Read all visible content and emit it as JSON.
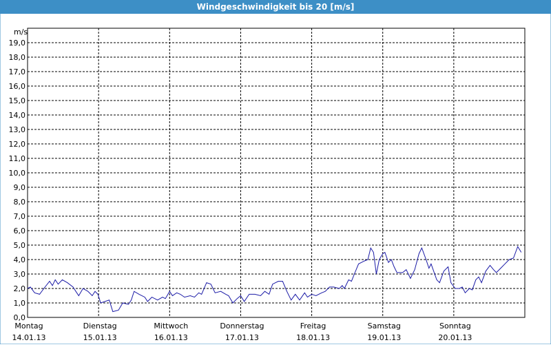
{
  "chart_data": {
    "type": "line",
    "title": "Windgeschwindigkeit bis 20 [m/s]",
    "y_unit": "m/s",
    "color": "#1a1aa6",
    "grid": true,
    "xlim": [
      0,
      7
    ],
    "ylim": [
      0,
      20
    ],
    "xticks": [
      {
        "value": 0,
        "label": "Montag",
        "sublabel": "14.01.13"
      },
      {
        "value": 1,
        "label": "Dienstag",
        "sublabel": "15.01.13"
      },
      {
        "value": 2,
        "label": "Mittwoch",
        "sublabel": "16.01.13"
      },
      {
        "value": 3,
        "label": "Donnerstag",
        "sublabel": "17.01.13"
      },
      {
        "value": 4,
        "label": "Freitag",
        "sublabel": "18.01.13"
      },
      {
        "value": 5,
        "label": "Samstag",
        "sublabel": "19.01.13"
      },
      {
        "value": 6,
        "label": "Sonntag",
        "sublabel": "20.01.13"
      }
    ],
    "yticks": [
      {
        "value": 0,
        "label": "0,0"
      },
      {
        "value": 1,
        "label": "1,0"
      },
      {
        "value": 2,
        "label": "2,0"
      },
      {
        "value": 3,
        "label": "3,0"
      },
      {
        "value": 4,
        "label": "4,0"
      },
      {
        "value": 5,
        "label": "5,0"
      },
      {
        "value": 6,
        "label": "6,0"
      },
      {
        "value": 7,
        "label": "7,0"
      },
      {
        "value": 8,
        "label": "8,0"
      },
      {
        "value": 9,
        "label": "9,0"
      },
      {
        "value": 10,
        "label": "10,0"
      },
      {
        "value": 11,
        "label": "11,0"
      },
      {
        "value": 12,
        "label": "12,0"
      },
      {
        "value": 13,
        "label": "13,0"
      },
      {
        "value": 14,
        "label": "14,0"
      },
      {
        "value": 15,
        "label": "15,0"
      },
      {
        "value": 16,
        "label": "16,0"
      },
      {
        "value": 17,
        "label": "17,0"
      },
      {
        "value": 18,
        "label": "18,0"
      },
      {
        "value": 19,
        "label": "19,0"
      }
    ],
    "x": [
      0,
      0.04,
      0.1,
      0.17,
      0.23,
      0.31,
      0.35,
      0.39,
      0.43,
      0.49,
      0.56,
      0.64,
      0.68,
      0.72,
      0.78,
      0.85,
      0.91,
      0.95,
      0.99,
      1.03,
      1.09,
      1.15,
      1.2,
      1.28,
      1.34,
      1.42,
      1.46,
      1.5,
      1.57,
      1.65,
      1.69,
      1.75,
      1.83,
      1.9,
      1.94,
      2.0,
      2.04,
      2.1,
      2.15,
      2.21,
      2.29,
      2.35,
      2.41,
      2.45,
      2.52,
      2.58,
      2.64,
      2.72,
      2.79,
      2.83,
      2.89,
      2.95,
      3.0,
      3.05,
      3.12,
      3.2,
      3.28,
      3.34,
      3.4,
      3.45,
      3.53,
      3.59,
      3.65,
      3.71,
      3.77,
      3.83,
      3.9,
      3.94,
      4.0,
      4.06,
      4.14,
      4.19,
      4.25,
      4.31,
      4.39,
      4.43,
      4.46,
      4.52,
      4.56,
      4.6,
      4.66,
      4.74,
      4.79,
      4.83,
      4.87,
      4.91,
      4.95,
      5.0,
      5.03,
      5.08,
      5.12,
      5.16,
      5.2,
      5.28,
      5.33,
      5.39,
      5.45,
      5.51,
      5.55,
      5.61,
      5.65,
      5.68,
      5.76,
      5.8,
      5.86,
      5.92,
      5.96,
      6.02,
      6.08,
      6.12,
      6.16,
      6.22,
      6.26,
      6.31,
      6.35,
      6.39,
      6.45,
      6.51,
      6.56,
      6.6,
      6.66,
      6.72,
      6.78,
      6.84,
      6.9,
      6.95
    ],
    "values": [
      2.0,
      2.1,
      1.7,
      1.6,
      2.0,
      2.5,
      2.2,
      2.6,
      2.3,
      2.6,
      2.4,
      2.1,
      1.8,
      1.5,
      2.0,
      1.8,
      1.5,
      1.8,
      1.6,
      1.0,
      1.1,
      1.2,
      0.4,
      0.5,
      1.0,
      0.9,
      1.2,
      1.8,
      1.6,
      1.4,
      1.1,
      1.4,
      1.2,
      1.4,
      1.3,
      1.8,
      1.5,
      1.7,
      1.6,
      1.4,
      1.5,
      1.4,
      1.7,
      1.6,
      2.4,
      2.3,
      1.7,
      1.8,
      1.6,
      1.5,
      1.0,
      1.3,
      1.5,
      1.1,
      1.6,
      1.6,
      1.5,
      1.8,
      1.6,
      2.3,
      2.5,
      2.5,
      1.8,
      1.2,
      1.6,
      1.2,
      1.7,
      1.4,
      1.6,
      1.5,
      1.7,
      1.8,
      2.1,
      2.1,
      2.0,
      2.2,
      2.0,
      2.6,
      2.5,
      3.0,
      3.7,
      3.9,
      4.0,
      4.8,
      4.5,
      3.0,
      4.0,
      4.4,
      4.5,
      3.8,
      4.0,
      3.5,
      3.1,
      3.1,
      3.3,
      2.7,
      3.3,
      4.4,
      4.8,
      4.0,
      3.4,
      3.7,
      2.6,
      2.4,
      3.2,
      3.5,
      2.4,
      2.0,
      2.0,
      2.1,
      1.7,
      2.0,
      1.9,
      2.6,
      2.8,
      2.4,
      3.2,
      3.6,
      3.3,
      3.1,
      3.4,
      3.7,
      4.0,
      4.1,
      4.9,
      4.5
    ]
  }
}
